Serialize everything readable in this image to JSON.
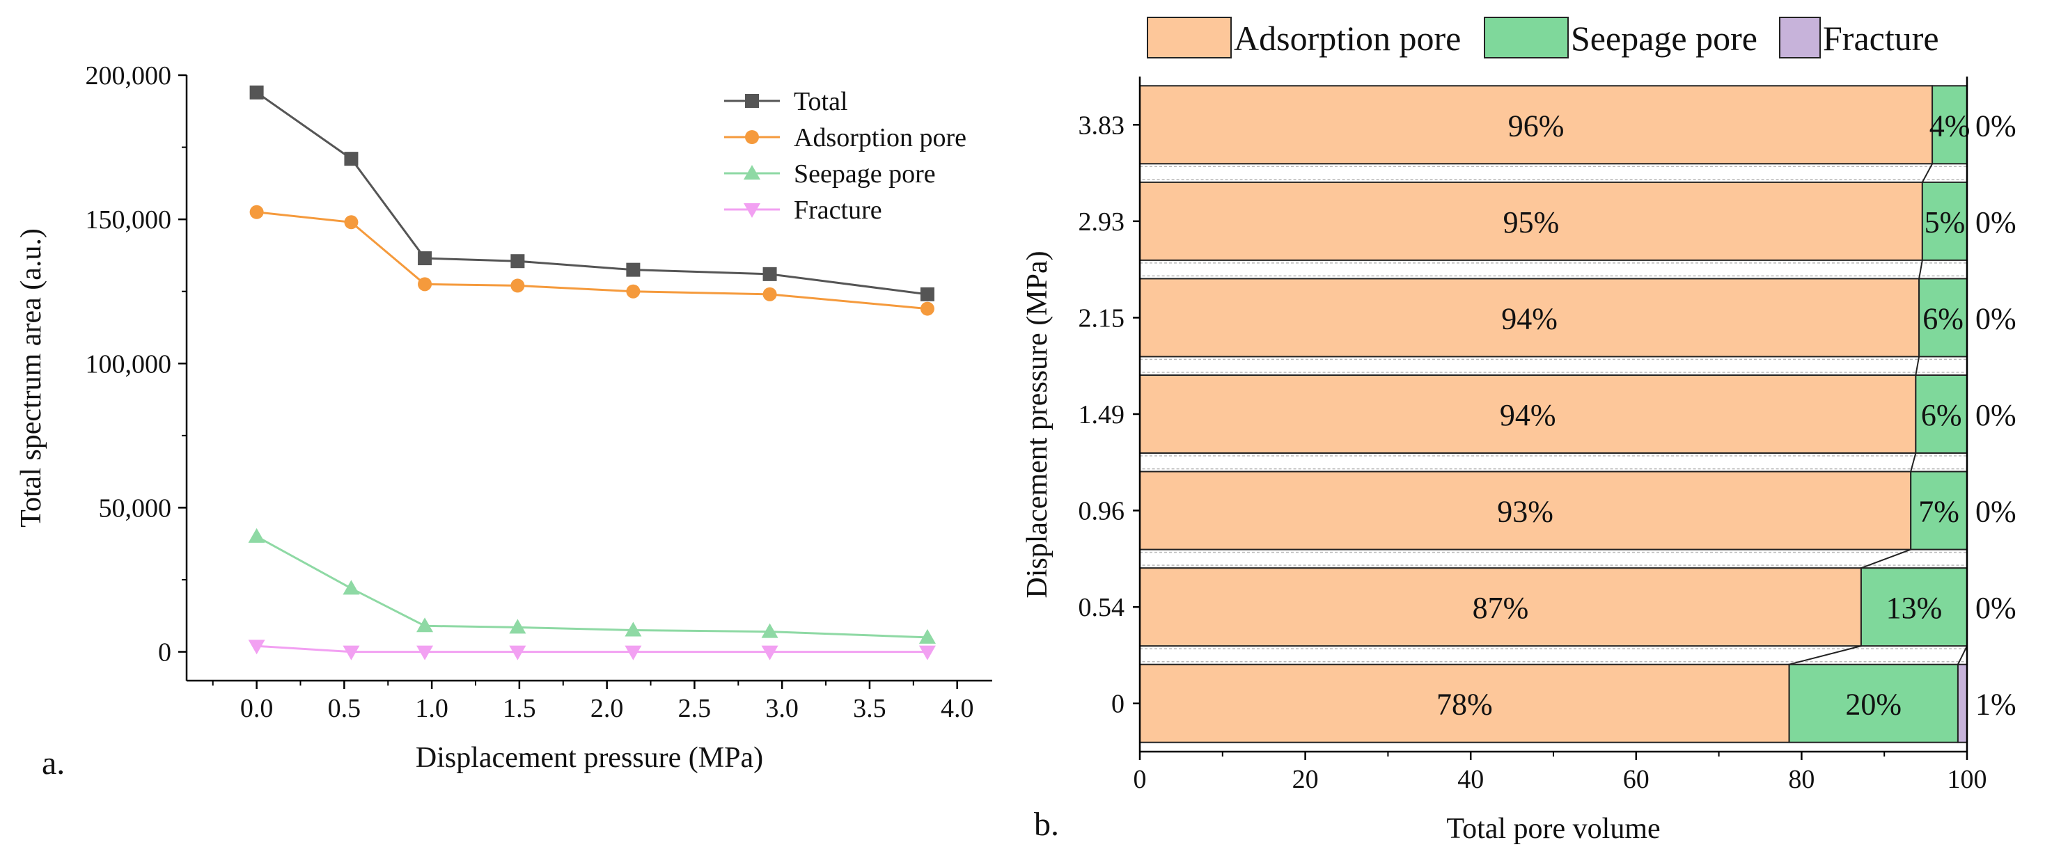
{
  "panel_labels": {
    "a": "a.",
    "b": "b."
  },
  "colors": {
    "total": "#555555",
    "adsorption": "#f59a3c",
    "seepage": "#8ed9a4",
    "fracture": "#f2a0f2",
    "adsorption_fill": "#fdc79a",
    "seepage_fill": "#7fd89b",
    "fracture_fill": "#c7b3da"
  },
  "chart_data": [
    {
      "type": "line",
      "xlabel": "Displacement pressure (MPa)",
      "ylabel": "Total spectrum area (a.u.)",
      "xlim": [
        -0.4,
        4.2
      ],
      "ylim": [
        -10000,
        200000
      ],
      "xticks": [
        0.0,
        0.5,
        1.0,
        1.5,
        2.0,
        2.5,
        3.0,
        3.5,
        4.0
      ],
      "xtick_labels": [
        "0.0",
        "0.5",
        "1.0",
        "1.5",
        "2.0",
        "2.5",
        "3.0",
        "3.5",
        "4.0"
      ],
      "yticks": [
        0,
        50000,
        100000,
        150000,
        200000
      ],
      "ytick_labels": [
        "0",
        "50,000",
        "100,000",
        "150,000",
        "200,000"
      ],
      "legend_position": "top-right",
      "x": [
        0,
        0.54,
        0.96,
        1.49,
        2.15,
        2.93,
        3.83
      ],
      "series": [
        {
          "name": "Total",
          "marker": "square",
          "values": [
            194000,
            171000,
            136500,
            135500,
            132500,
            131000,
            124000
          ]
        },
        {
          "name": "Adsorption pore",
          "marker": "circle",
          "values": [
            152500,
            149000,
            127500,
            127000,
            125000,
            124000,
            119000
          ]
        },
        {
          "name": "Seepage pore",
          "marker": "triangle-up",
          "values": [
            40000,
            22000,
            9000,
            8500,
            7500,
            7000,
            5000
          ]
        },
        {
          "name": "Fracture",
          "marker": "triangle-down",
          "values": [
            2000,
            0,
            0,
            0,
            0,
            0,
            0
          ]
        }
      ]
    },
    {
      "type": "bar",
      "orientation": "horizontal",
      "stacked": true,
      "xlabel": "Total pore volume",
      "ylabel": "Displacement pressure (MPa)",
      "xlim": [
        0,
        100
      ],
      "xticks": [
        0,
        20,
        40,
        60,
        80,
        100
      ],
      "xtick_labels": [
        "0",
        "20",
        "40",
        "60",
        "80",
        "100"
      ],
      "legend_position": "top",
      "categories": [
        "0",
        "0.54",
        "0.96",
        "1.49",
        "2.15",
        "2.93",
        "3.83"
      ],
      "series": [
        {
          "name": "Adsorption pore",
          "values": [
            78.5,
            87.2,
            93.2,
            93.8,
            94.2,
            94.6,
            95.8
          ],
          "labels": [
            "78%",
            "87%",
            "93%",
            "94%",
            "94%",
            "95%",
            "96%"
          ]
        },
        {
          "name": "Seepage pore",
          "values": [
            20.4,
            12.8,
            6.8,
            6.2,
            5.8,
            5.4,
            4.2
          ],
          "labels": [
            "20%",
            "13%",
            "7%",
            "6%",
            "6%",
            "5%",
            "4%"
          ]
        },
        {
          "name": "Fracture",
          "values": [
            1.1,
            0,
            0,
            0,
            0,
            0,
            0
          ],
          "labels": [
            "1%",
            "0%",
            "0%",
            "0%",
            "0%",
            "0%",
            "0%"
          ]
        }
      ]
    }
  ]
}
